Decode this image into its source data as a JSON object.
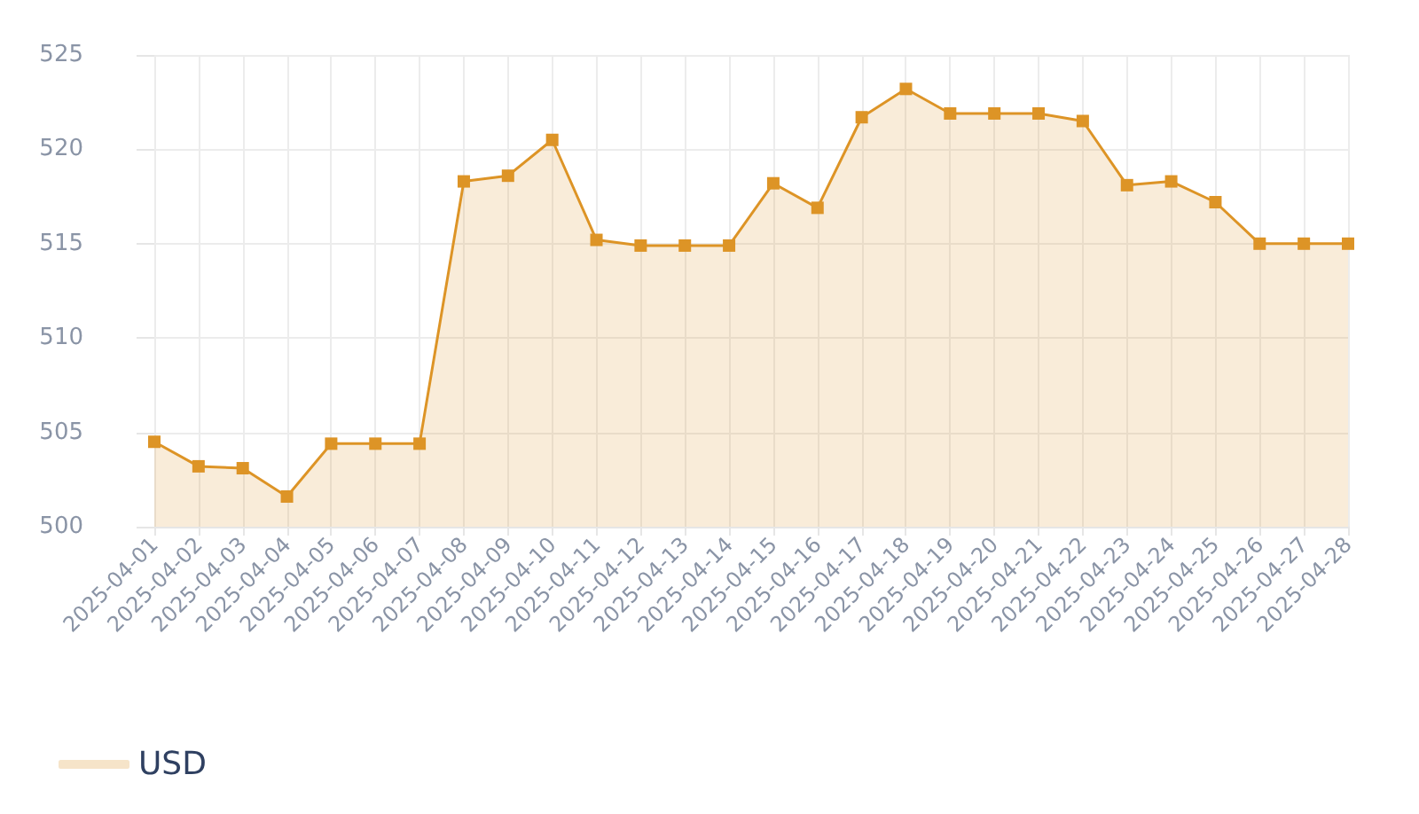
{
  "chart_data": {
    "type": "area",
    "categories": [
      "2025-04-01",
      "2025-04-02",
      "2025-04-03",
      "2025-04-04",
      "2025-04-05",
      "2025-04-06",
      "2025-04-07",
      "2025-04-08",
      "2025-04-09",
      "2025-04-10",
      "2025-04-11",
      "2025-04-12",
      "2025-04-13",
      "2025-04-14",
      "2025-04-15",
      "2025-04-16",
      "2025-04-17",
      "2025-04-18",
      "2025-04-19",
      "2025-04-20",
      "2025-04-21",
      "2025-04-22",
      "2025-04-23",
      "2025-04-24",
      "2025-04-25",
      "2025-04-26",
      "2025-04-27",
      "2025-04-28"
    ],
    "series": [
      {
        "name": "USD",
        "color": "#dd9426",
        "values": [
          504.5,
          503.2,
          503.1,
          501.6,
          504.4,
          504.4,
          504.4,
          518.3,
          518.6,
          520.5,
          515.2,
          514.9,
          514.9,
          514.9,
          518.2,
          516.9,
          521.7,
          523.2,
          521.9,
          521.9,
          521.9,
          521.5,
          518.1,
          518.3,
          517.2,
          515.0,
          515.0,
          515.0
        ]
      }
    ],
    "ylim": [
      500,
      525
    ],
    "yticks": [
      500,
      505,
      510,
      515,
      520,
      525
    ],
    "grid": true,
    "legend": "bottom left",
    "marker": "square"
  }
}
